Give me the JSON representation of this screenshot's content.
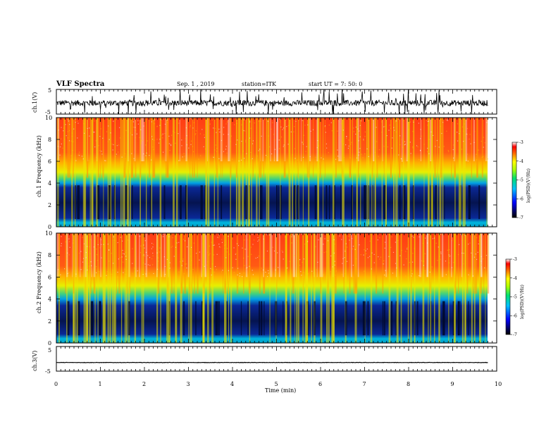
{
  "header": {
    "title": "VLF Spectra",
    "date": "Sep. 1 , 2019",
    "station": "station=ITK",
    "start": "start UT = 7: 50: 0"
  },
  "chart_data": [
    {
      "type": "line",
      "name": "ch1-waveform",
      "ylabel": "ch.1(V)",
      "ylim": [
        -5,
        5
      ],
      "yticks": [
        "5",
        "-5"
      ],
      "xlim": [
        0,
        10
      ],
      "baseline": -0.5,
      "data_end": 9.8
    },
    {
      "type": "heatmap",
      "name": "ch1-spectrogram",
      "ylabel": "ch.1 Frequency (kHz)",
      "xlim": [
        0,
        10
      ],
      "ylim": [
        0,
        10
      ],
      "yticks": [
        "0",
        "2",
        "4",
        "6",
        "8",
        "10"
      ],
      "colorbar": {
        "label": "log(PSD)(V²/Hz)",
        "range": [
          -7,
          -3
        ],
        "ticks": [
          "-3",
          "-4",
          "-5",
          "-6",
          "-7"
        ]
      }
    },
    {
      "type": "heatmap",
      "name": "ch2-spectrogram",
      "ylabel": "ch.2 Frequency (kHz)",
      "xlim": [
        0,
        10
      ],
      "ylim": [
        0,
        10
      ],
      "yticks": [
        "0",
        "2",
        "4",
        "6",
        "8",
        "10"
      ],
      "colorbar": {
        "label": "log(PSD)(V²/Hz)",
        "range": [
          -7,
          -3
        ],
        "ticks": [
          "-3",
          "-4",
          "-5",
          "-6",
          "-7"
        ]
      }
    },
    {
      "type": "line",
      "name": "ch3-waveform",
      "ylabel": "ch.3(V)",
      "ylim": [
        -5,
        5
      ],
      "yticks": [
        "5",
        "-5"
      ],
      "xlim": [
        0,
        10
      ],
      "baseline": -1.5,
      "data_end": 9.8
    }
  ],
  "xaxis": {
    "label": "Time (min)",
    "ticks": [
      "0",
      "1",
      "2",
      "3",
      "4",
      "5",
      "6",
      "7",
      "8",
      "9",
      "10"
    ]
  }
}
